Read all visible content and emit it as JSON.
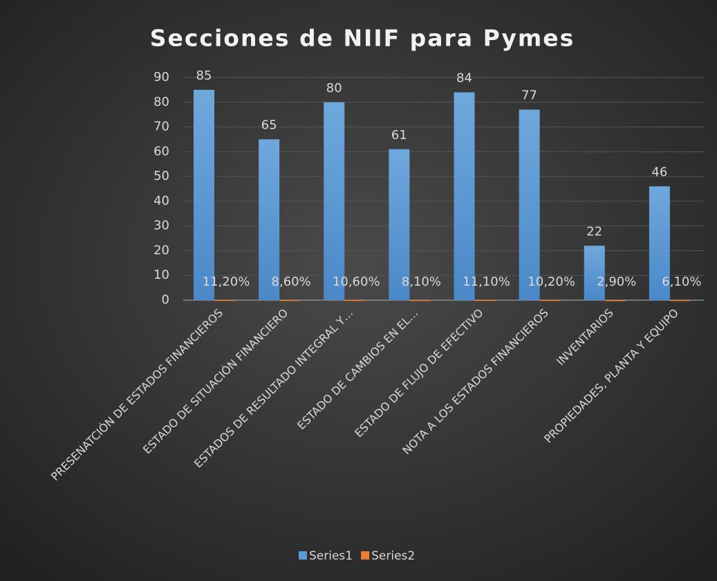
{
  "chart_data": {
    "type": "bar",
    "title": "Secciones de NIIF para Pymes",
    "categories": [
      "PRESENATCIÓN DE ESTADOS FINANCIEROS",
      "ESTADO DE SITUACIÓN FINANCIERO",
      "ESTADOS DE RESULTADO INTEGRAL Y…",
      "ESTADO DE CAMBIOS EN EL…",
      "ESTADO DE FLUJO DE EFECTIVO",
      "NOTA A LOS ESTADOS FINANCIEROS",
      "INVENTARIOS",
      "PROPIEDADES, PLANTA Y EQUIPO"
    ],
    "series": [
      {
        "name": "Series1",
        "color": "#5b9bd5",
        "values": [
          85,
          65,
          80,
          61,
          84,
          77,
          22,
          46
        ]
      },
      {
        "name": "Series2",
        "color": "#ed7d31",
        "values": [
          0.112,
          0.086,
          0.106,
          0.081,
          0.111,
          0.102,
          0.029,
          0.061
        ],
        "value_labels": [
          "11,20%",
          "8,60%",
          "10,60%",
          "8,10%",
          "11,10%",
          "10,20%",
          "2,90%",
          "6,10%"
        ]
      }
    ],
    "ylim": [
      0,
      90
    ],
    "yticks": [
      0,
      10,
      20,
      30,
      40,
      50,
      60,
      70,
      80,
      90
    ],
    "grid": true,
    "legend": "bottom"
  }
}
